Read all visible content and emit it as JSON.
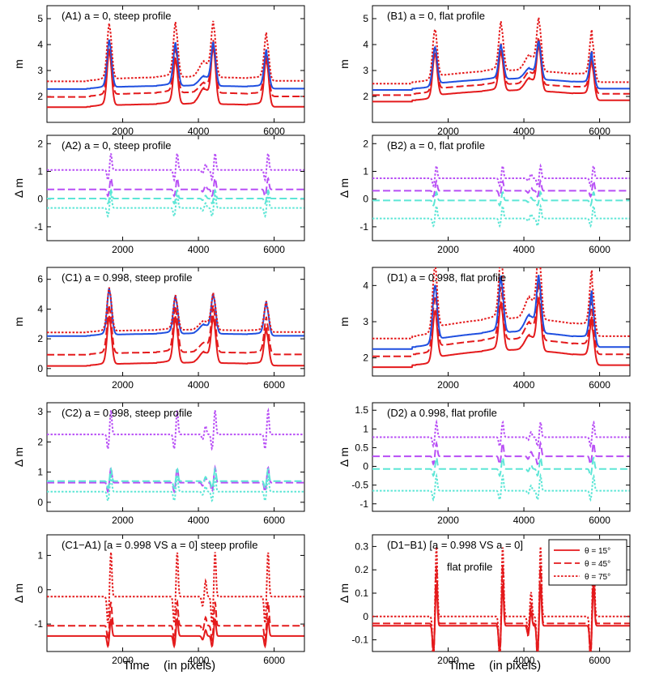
{
  "figure": {
    "xlabel_main": "Time",
    "xlabel_sub": "(in pixels)"
  },
  "chart_data": [
    {
      "id": "A1",
      "type": "line",
      "title": "(A1)  a = 0, steep profile",
      "ylabel": "m",
      "xlim": [
        0,
        6800
      ],
      "ylim": [
        1,
        5.5
      ],
      "xticks": [
        2000,
        4000,
        6000
      ],
      "yticks": [
        2,
        3,
        4,
        5
      ],
      "peaks": [
        1650,
        3400,
        4150,
        4400,
        5800
      ],
      "series": [
        {
          "style": "solid",
          "color": "#e41a1c",
          "base": 1.6,
          "ramp": 0.15,
          "peaks": [
            2.0,
            1.6,
            0.5,
            2.0,
            1.7
          ]
        },
        {
          "style": "dashed",
          "color": "#e41a1c",
          "base": 2.0,
          "ramp": 0.2,
          "peaks": [
            1.9,
            1.6,
            0.3,
            1.8,
            1.5
          ]
        },
        {
          "style": "solid",
          "color": "#1f4fe0",
          "base": 2.3,
          "ramp": 0.15,
          "peaks": [
            1.7,
            1.5,
            0.3,
            1.5,
            1.3
          ]
        },
        {
          "style": "dotted",
          "color": "#e41a1c",
          "base": 2.6,
          "ramp": 0.2,
          "peaks": [
            2.0,
            1.9,
            0.5,
            1.9,
            1.6
          ]
        }
      ]
    },
    {
      "id": "B1",
      "type": "line",
      "title": "(B1)  a = 0, flat profile",
      "ylabel": "m",
      "xlim": [
        0,
        6800
      ],
      "ylim": [
        1,
        5.5
      ],
      "xticks": [
        2000,
        4000,
        6000
      ],
      "yticks": [
        2,
        3,
        4,
        5
      ],
      "peaks": [
        1650,
        3400,
        4150,
        4400,
        5800
      ],
      "series": [
        {
          "style": "solid",
          "color": "#e41a1c",
          "base": 1.85,
          "ramp": 0.5,
          "peaks": [
            1.6,
            1.4,
            0.4,
            1.6,
            1.3
          ]
        },
        {
          "style": "dashed",
          "color": "#e41a1c",
          "base": 2.1,
          "ramp": 0.5,
          "peaks": [
            1.6,
            1.4,
            0.4,
            1.6,
            1.3
          ]
        },
        {
          "style": "solid",
          "color": "#1f4fe0",
          "base": 2.3,
          "ramp": 0.5,
          "peaks": [
            1.4,
            1.2,
            0.35,
            1.3,
            1.1
          ]
        },
        {
          "style": "dotted",
          "color": "#e41a1c",
          "base": 2.55,
          "ramp": 0.6,
          "peaks": [
            1.8,
            1.7,
            0.5,
            1.8,
            1.6
          ]
        }
      ]
    },
    {
      "id": "A2",
      "type": "line",
      "title": "(A2)   a = 0, steep profile",
      "ylabel": "Δ m",
      "xlim": [
        0,
        6800
      ],
      "ylim": [
        -1.5,
        2.3
      ],
      "xticks": [
        2000,
        4000,
        6000
      ],
      "yticks": [
        -1,
        0,
        1,
        2
      ],
      "peaks": [
        1650,
        3400,
        4150,
        4400,
        5800
      ],
      "series": [
        {
          "style": "dotted",
          "color": "#b84ff5",
          "base": 1.05,
          "diff": 0.6
        },
        {
          "style": "dashed",
          "color": "#b84ff5",
          "base": 0.35,
          "diff": 0.4
        },
        {
          "style": "dashed",
          "color": "#5de6d6",
          "base": 0.02,
          "diff": 0.3
        },
        {
          "style": "dotted",
          "color": "#5de6d6",
          "base": -0.32,
          "diff": 0.5
        }
      ]
    },
    {
      "id": "B2",
      "type": "line",
      "title": "(B2)  a = 0, flat profile",
      "ylabel": "Δ m",
      "xlim": [
        0,
        6800
      ],
      "ylim": [
        -1.5,
        2.3
      ],
      "xticks": [
        2000,
        4000,
        6000
      ],
      "yticks": [
        -1,
        0,
        1,
        2
      ],
      "peaks": [
        1650,
        3400,
        4150,
        4400,
        5800
      ],
      "series": [
        {
          "style": "dotted",
          "color": "#b84ff5",
          "base": 0.75,
          "diff": 0.45
        },
        {
          "style": "dashed",
          "color": "#b84ff5",
          "base": 0.3,
          "diff": 0.35
        },
        {
          "style": "dashed",
          "color": "#5de6d6",
          "base": -0.05,
          "diff": 0.3
        },
        {
          "style": "dotted",
          "color": "#5de6d6",
          "base": -0.7,
          "diff": 0.45
        }
      ]
    },
    {
      "id": "C1",
      "type": "line",
      "title": "(C1)   a = 0.998, steep profile",
      "ylabel": "m",
      "xlim": [
        0,
        6800
      ],
      "ylim": [
        -0.5,
        6.8
      ],
      "xticks": [
        2000,
        4000,
        6000
      ],
      "yticks": [
        0,
        2,
        4,
        6
      ],
      "peaks": [
        1650,
        3400,
        4150,
        4400,
        5800
      ],
      "series": [
        {
          "style": "solid",
          "color": "#e41a1c",
          "base": 0.2,
          "ramp": 0.25,
          "peaks": [
            3.0,
            2.8,
            0.6,
            2.8,
            2.2
          ]
        },
        {
          "style": "dashed",
          "color": "#e41a1c",
          "base": 0.95,
          "ramp": 0.2,
          "peaks": [
            3.0,
            2.8,
            0.5,
            2.8,
            2.2
          ]
        },
        {
          "style": "solid",
          "color": "#1f4fe0",
          "base": 2.2,
          "ramp": 0.2,
          "peaks": [
            2.9,
            2.3,
            0.5,
            2.4,
            2.0
          ]
        },
        {
          "style": "dotted",
          "color": "#e41a1c",
          "base": 2.45,
          "ramp": 0.2,
          "peaks": [
            2.7,
            2.1,
            0.5,
            2.2,
            1.8
          ]
        }
      ]
    },
    {
      "id": "D1",
      "type": "line",
      "title": "(D1)   a = 0.998, flat profile",
      "ylabel": "m",
      "xlim": [
        0,
        6800
      ],
      "ylim": [
        1.5,
        4.5
      ],
      "xticks": [
        2000,
        4000,
        6000
      ],
      "yticks": [
        2,
        3,
        4
      ],
      "peaks": [
        1650,
        3400,
        4150,
        4400,
        5800
      ],
      "series": [
        {
          "style": "solid",
          "color": "#e41a1c",
          "base": 1.8,
          "ramp": 0.55,
          "peaks": [
            1.3,
            1.2,
            0.35,
            1.3,
            1.0
          ]
        },
        {
          "style": "dashed",
          "color": "#e41a1c",
          "base": 2.1,
          "ramp": 0.55,
          "peaks": [
            1.4,
            1.3,
            0.4,
            1.4,
            1.1
          ]
        },
        {
          "style": "solid",
          "color": "#1f4fe0",
          "base": 2.3,
          "ramp": 0.55,
          "peaks": [
            1.5,
            1.4,
            0.4,
            1.4,
            1.2
          ]
        },
        {
          "style": "dotted",
          "color": "#e41a1c",
          "base": 2.6,
          "ramp": 0.65,
          "peaks": [
            1.7,
            1.6,
            0.5,
            1.7,
            1.4
          ]
        }
      ]
    },
    {
      "id": "C2",
      "type": "line",
      "title": "(C2)   a = 0.998, steep profile",
      "ylabel": "Δ m",
      "xlim": [
        0,
        6800
      ],
      "ylim": [
        -0.3,
        3.3
      ],
      "xticks": [
        2000,
        4000,
        6000
      ],
      "yticks": [
        0,
        1,
        2,
        3
      ],
      "peaks": [
        1650,
        3400,
        4150,
        4400,
        5800
      ],
      "series": [
        {
          "style": "dotted",
          "color": "#b84ff5",
          "base": 2.25,
          "diff": 0.8
        },
        {
          "style": "dashed",
          "color": "#b84ff5",
          "base": 0.65,
          "diff": 0.5
        },
        {
          "style": "dashed",
          "color": "#5de6d6",
          "base": 0.7,
          "diff": 0.4
        },
        {
          "style": "dotted",
          "color": "#5de6d6",
          "base": 0.35,
          "diff": 0.5
        }
      ]
    },
    {
      "id": "D2",
      "type": "line",
      "title": "(D2)  a   0.998, flat profile",
      "ylabel": "Δ m",
      "xlim": [
        0,
        6800
      ],
      "ylim": [
        -1.2,
        1.7
      ],
      "xticks": [
        2000,
        4000,
        6000
      ],
      "yticks": [
        -1,
        -0.5,
        0,
        0.5,
        1,
        1.5
      ],
      "peaks": [
        1650,
        3400,
        4150,
        4400,
        5800
      ],
      "series": [
        {
          "style": "dotted",
          "color": "#b84ff5",
          "base": 0.78,
          "diff": 0.4
        },
        {
          "style": "dashed",
          "color": "#b84ff5",
          "base": 0.27,
          "diff": 0.35
        },
        {
          "style": "dashed",
          "color": "#5de6d6",
          "base": -0.07,
          "diff": 0.3
        },
        {
          "style": "dotted",
          "color": "#5de6d6",
          "base": -0.65,
          "diff": 0.4
        }
      ]
    },
    {
      "id": "C1-A1",
      "type": "line",
      "title": "(C1−A1)      [a = 0.998  VS  a = 0]  steep profile",
      "ylabel": "Δ m",
      "xlim": [
        0,
        6800
      ],
      "ylim": [
        -1.8,
        1.6
      ],
      "xticks": [
        2000,
        4000,
        6000
      ],
      "yticks": [
        -1,
        0,
        1
      ],
      "peaks": [
        1650,
        3400,
        4150,
        4400,
        5800
      ],
      "series": [
        {
          "style": "solid",
          "color": "#e41a1c",
          "base": -1.35,
          "diff": 0.5
        },
        {
          "style": "dashed",
          "color": "#e41a1c",
          "base": -1.05,
          "diff": 0.7
        },
        {
          "style": "dotted",
          "color": "#e41a1c",
          "base": -0.2,
          "diff": 1.3
        }
      ]
    },
    {
      "id": "D1-B1",
      "type": "line",
      "title": "(D1−B1)      [a = 0.998  VS  a = 0]",
      "subtitle": "flat profile",
      "ylabel": "Δ m",
      "xlim": [
        0,
        6800
      ],
      "ylim": [
        -0.15,
        0.35
      ],
      "xticks": [
        2000,
        4000,
        6000
      ],
      "yticks": [
        -0.1,
        0,
        0.1,
        0.2,
        0.3
      ],
      "peaks": [
        1650,
        3400,
        4150,
        4400,
        5800
      ],
      "legend": {
        "placement": "top-right",
        "entries": [
          {
            "style": "solid",
            "color": "#e41a1c",
            "label": "θ = 15°"
          },
          {
            "style": "dashed",
            "color": "#e41a1c",
            "label": "θ = 45°"
          },
          {
            "style": "dotted",
            "color": "#e41a1c",
            "label": "θ = 75°"
          }
        ]
      },
      "series": [
        {
          "style": "solid",
          "color": "#e41a1c",
          "base": -0.04,
          "diff": 0.18
        },
        {
          "style": "dashed",
          "color": "#e41a1c",
          "base": -0.03,
          "diff": 0.25
        },
        {
          "style": "dotted",
          "color": "#e41a1c",
          "base": 0.0,
          "diff": 0.3
        }
      ]
    }
  ]
}
